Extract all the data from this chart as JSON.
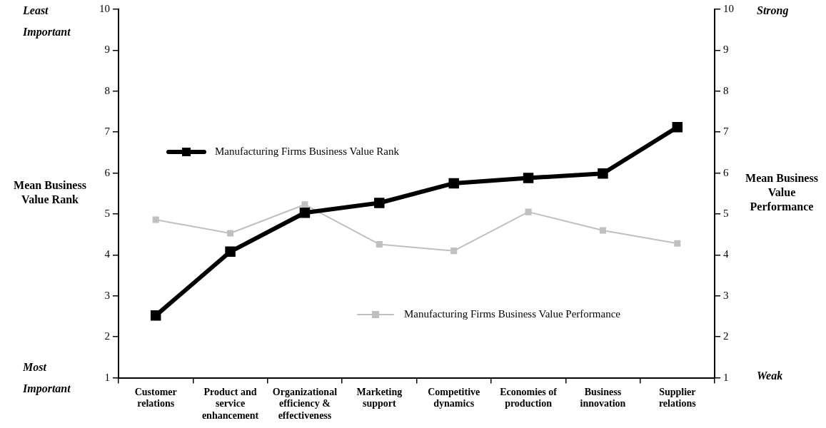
{
  "chart_data": {
    "type": "line",
    "categories": [
      "Customer relations",
      "Product and service enhancement",
      "Organizational efficiency & effectiveness",
      "Marketing support",
      "Competitive dynamics",
      "Economies of production",
      "Business innovation",
      "Supplier relations"
    ],
    "series": [
      {
        "name": "Manufacturing Firms Business Value Rank",
        "color": "#000000",
        "values": [
          2.52,
          4.08,
          5.03,
          5.27,
          5.75,
          5.88,
          5.99,
          7.12
        ]
      },
      {
        "name": "Manufacturing Firms Business Value Performance",
        "color": "#c0c0c0",
        "axis": "y2",
        "values": [
          4.86,
          4.53,
          5.23,
          4.26,
          4.1,
          5.05,
          4.6,
          4.28
        ]
      }
    ],
    "ylabel": "Mean Business Value Rank",
    "y2label": "Mean Business Value Performance",
    "ylim": [
      1,
      10
    ],
    "yticks": [
      1,
      2,
      3,
      4,
      5,
      6,
      7,
      8,
      9,
      10
    ],
    "y2lim": [
      1,
      10
    ],
    "y2ticks": [
      1,
      2,
      3,
      4,
      5,
      6,
      7,
      8,
      9,
      10
    ],
    "annotations": [
      "Least Important",
      "Most Important",
      "Strong",
      "Weak"
    ],
    "legend": "left",
    "marker": "square",
    "grid": false
  }
}
